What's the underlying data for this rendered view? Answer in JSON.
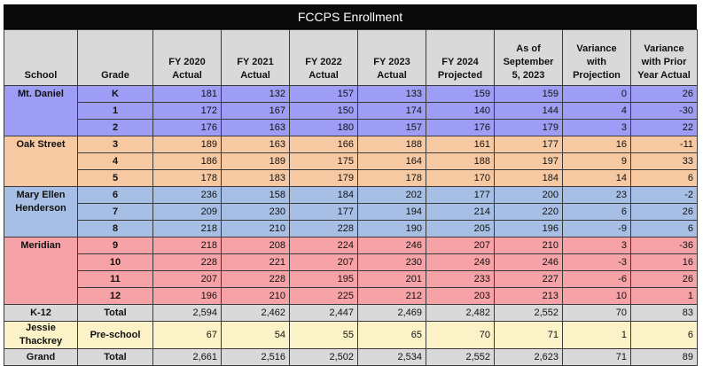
{
  "title": "FCCPS Enrollment",
  "headers": [
    "School",
    "Grade",
    "FY 2020 Actual",
    "FY 2021 Actual",
    "FY 2022 Actual",
    "FY 2023 Actual",
    "FY 2024 Projected",
    "As of September 5, 2023",
    "Variance with Projection",
    "Variance with Prior Year Actual"
  ],
  "colors": {
    "mt_daniel": "#9d9df5",
    "oak_street": "#f7c9a3",
    "mary_ellen_henderson": "#a7bfe4",
    "meridian": "#f6a2a6",
    "jessie_thackrey": "#fbf3c7",
    "header": "#d9d9d9",
    "title_bar": "#0a0a0a"
  },
  "groups": [
    {
      "school": "Mt. Daniel",
      "color": "#9d9df5",
      "rows": [
        {
          "grade": "K",
          "values": [
            "181",
            "132",
            "157",
            "133",
            "159",
            "159",
            "0",
            "26"
          ]
        },
        {
          "grade": "1",
          "values": [
            "172",
            "167",
            "150",
            "174",
            "140",
            "144",
            "4",
            "-30"
          ]
        },
        {
          "grade": "2",
          "values": [
            "176",
            "163",
            "180",
            "157",
            "176",
            "179",
            "3",
            "22"
          ]
        }
      ]
    },
    {
      "school": "Oak Street",
      "color": "#f7c9a3",
      "rows": [
        {
          "grade": "3",
          "values": [
            "189",
            "163",
            "166",
            "188",
            "161",
            "177",
            "16",
            "-11"
          ]
        },
        {
          "grade": "4",
          "values": [
            "186",
            "189",
            "175",
            "164",
            "188",
            "197",
            "9",
            "33"
          ]
        },
        {
          "grade": "5",
          "values": [
            "178",
            "183",
            "179",
            "178",
            "170",
            "184",
            "14",
            "6"
          ]
        }
      ]
    },
    {
      "school": "Mary Ellen Henderson",
      "color": "#a7bfe4",
      "rows": [
        {
          "grade": "6",
          "values": [
            "236",
            "158",
            "184",
            "202",
            "177",
            "200",
            "23",
            "-2"
          ]
        },
        {
          "grade": "7",
          "values": [
            "209",
            "230",
            "177",
            "194",
            "214",
            "220",
            "6",
            "26"
          ]
        },
        {
          "grade": "8",
          "values": [
            "218",
            "210",
            "228",
            "190",
            "205",
            "196",
            "-9",
            "6"
          ]
        }
      ]
    },
    {
      "school": "Meridian",
      "color": "#f6a2a6",
      "rows": [
        {
          "grade": "9",
          "values": [
            "218",
            "208",
            "224",
            "246",
            "207",
            "210",
            "3",
            "-36"
          ]
        },
        {
          "grade": "10",
          "values": [
            "228",
            "221",
            "207",
            "230",
            "249",
            "246",
            "-3",
            "16"
          ]
        },
        {
          "grade": "11",
          "values": [
            "207",
            "228",
            "195",
            "201",
            "233",
            "227",
            "-6",
            "26"
          ]
        },
        {
          "grade": "12",
          "values": [
            "196",
            "210",
            "225",
            "212",
            "203",
            "213",
            "10",
            "1"
          ]
        }
      ]
    }
  ],
  "summary": [
    {
      "school": "K-12",
      "grade": "Total",
      "color": "#d9d9d9",
      "values": [
        "2,594",
        "2,462",
        "2,447",
        "2,469",
        "2,482",
        "2,552",
        "70",
        "83"
      ]
    },
    {
      "school": "Jessie Thackrey",
      "grade": "Pre-school",
      "color": "#fbf3c7",
      "values": [
        "67",
        "54",
        "55",
        "65",
        "70",
        "71",
        "1",
        "6"
      ]
    },
    {
      "school": "Grand",
      "grade": "Total",
      "color": "#d9d9d9",
      "values": [
        "2,661",
        "2,516",
        "2,502",
        "2,534",
        "2,552",
        "2,623",
        "71",
        "89"
      ]
    }
  ]
}
